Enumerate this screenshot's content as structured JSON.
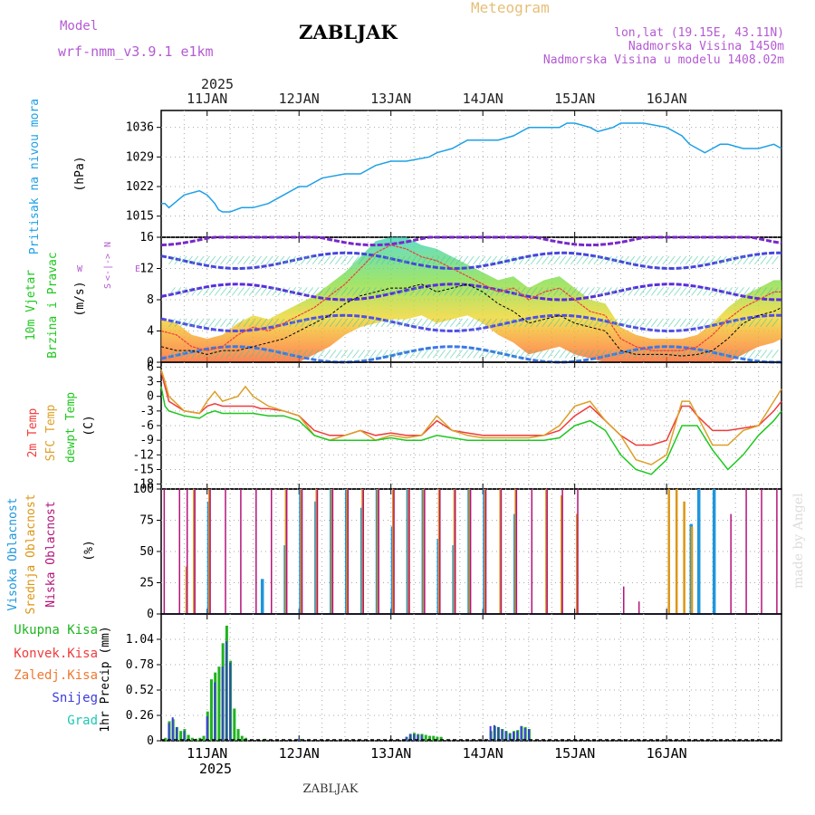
{
  "header": {
    "model_label": "Model",
    "model_name": "wrf-nmm_v3.9.1 e1km",
    "station": "ZABLJAK",
    "meteogram": "Meteogram",
    "lonlat": "lon,lat (19.15E, 43.11N)",
    "altitude": "Nadmorska Visina 1450m",
    "model_altitude": "Nadmorska Visina u modelu 1408.02m",
    "footer_station": "ZABLJAK",
    "credit": "made by Angel",
    "top_year": "2025",
    "bottom_year": "2025"
  },
  "colors": {
    "pressure": "#1ea0e6",
    "temp2m": "#f03c3c",
    "sfc": "#dca028",
    "dewpt": "#1ec81e",
    "high_cloud": "#1e96dc",
    "mid_cloud": "#dc9614",
    "low_cloud": "#b4147a",
    "total_precip": "#1eb41e",
    "conv_precip": "#f03c3c",
    "frz_precip": "#f07832",
    "snow": "#3c3cdc",
    "graupel": "#1ec8b4",
    "wind_speed": "#000000",
    "wind_gust": "#f03c3c"
  },
  "chart_data": [
    {
      "type": "line",
      "panel": "pressure",
      "ylabel_lines": [
        "Pritisak na nivou mora",
        "(hPa)"
      ],
      "ylim": [
        1010,
        1040
      ],
      "yticks": [
        1015,
        1022,
        1029,
        1036
      ],
      "x_day_labels": [
        "11JAN",
        "12JAN",
        "13JAN",
        "14JAN",
        "15JAN",
        "16JAN"
      ],
      "x_hours_range": [
        -12,
        150
      ],
      "grid": true,
      "series": [
        {
          "hours": [
            -12,
            -11,
            -10,
            -6,
            -2,
            0,
            2,
            3,
            4,
            6,
            9,
            12,
            16,
            20,
            24,
            26,
            30,
            36,
            40,
            44,
            48,
            52,
            58,
            60,
            64,
            68,
            72,
            76,
            80,
            84,
            88,
            92,
            94,
            96,
            100,
            102,
            104,
            106,
            108,
            110,
            114,
            120,
            124,
            126,
            128,
            130,
            132,
            134,
            136,
            140,
            144,
            148,
            150
          ],
          "values": [
            1018,
            1018,
            1017,
            1020,
            1021,
            1020,
            1018,
            1016.5,
            1016,
            1016,
            1017,
            1017,
            1018,
            1020,
            1022,
            1022,
            1024,
            1025,
            1025,
            1027,
            1028,
            1028,
            1029,
            1030,
            1031,
            1033,
            1033,
            1033,
            1034,
            1036,
            1036,
            1036,
            1037,
            1037,
            1036,
            1035,
            1035.5,
            1036,
            1037,
            1037,
            1037,
            1036,
            1034,
            1032,
            1031,
            1030,
            1031,
            1032,
            1032,
            1031,
            1031,
            1032,
            1031
          ]
        }
      ]
    },
    {
      "type": "line",
      "panel": "wind",
      "ylabel_lines": [
        "10m Vjetar",
        "Brzina i Pravac",
        "(m/s)"
      ],
      "direction_legend": [
        "N",
        "E",
        "W",
        "S",
        "<-|->"
      ],
      "ylim": [
        0,
        16
      ],
      "yticks": [
        0,
        4,
        8,
        12,
        16
      ],
      "grid": true,
      "series": [
        {
          "name": "speed",
          "hours": [
            -12,
            -8,
            -4,
            0,
            4,
            8,
            12,
            16,
            20,
            24,
            28,
            32,
            36,
            40,
            44,
            48,
            52,
            56,
            60,
            64,
            68,
            72,
            76,
            80,
            84,
            88,
            92,
            96,
            100,
            104,
            108,
            112,
            116,
            120,
            124,
            128,
            132,
            136,
            140,
            144,
            148,
            150
          ],
          "values": [
            2,
            1.5,
            1.5,
            1,
            1.5,
            1.5,
            2,
            2.5,
            3,
            4,
            5,
            6,
            7.5,
            8.5,
            9,
            9.5,
            9.5,
            10,
            9,
            9.5,
            10,
            9,
            7.5,
            6.5,
            5,
            5.5,
            6,
            5,
            4.5,
            4,
            1.5,
            1,
            1,
            1,
            0.8,
            1,
            1.5,
            3,
            5,
            6,
            6.5,
            7
          ]
        },
        {
          "name": "gust",
          "hours": [
            -12,
            -8,
            -4,
            0,
            4,
            8,
            12,
            16,
            20,
            24,
            28,
            32,
            36,
            40,
            44,
            48,
            52,
            56,
            60,
            64,
            68,
            72,
            76,
            80,
            84,
            88,
            92,
            96,
            100,
            104,
            108,
            112,
            116,
            120,
            124,
            128,
            132,
            136,
            140,
            144,
            148,
            150
          ],
          "values": [
            4,
            3.5,
            2,
            1.5,
            2,
            3.5,
            4.5,
            4,
            5,
            6,
            7,
            8.5,
            10,
            12,
            14,
            15,
            14.5,
            13.5,
            13,
            12,
            11,
            10,
            9,
            9.5,
            8,
            9,
            9.5,
            8,
            6.5,
            6,
            3,
            2,
            1.5,
            1.5,
            1.5,
            2,
            3.5,
            5.5,
            7,
            8,
            9,
            9
          ]
        }
      ]
    },
    {
      "type": "line",
      "panel": "temperature",
      "ylabel_lines": [
        "2m Temp",
        "SFC Temp",
        "dewpt Temp",
        "(C)"
      ],
      "ylim": [
        -19,
        7
      ],
      "yticks": [
        -18,
        -15,
        -12,
        -9,
        -6,
        -3,
        0,
        3,
        6
      ],
      "grid": true,
      "series": [
        {
          "name": "2m Temp",
          "hours": [
            -12,
            -11,
            -10,
            -6,
            -2,
            0,
            2,
            4,
            8,
            12,
            14,
            16,
            20,
            24,
            28,
            32,
            36,
            40,
            44,
            48,
            52,
            56,
            60,
            64,
            68,
            72,
            76,
            80,
            84,
            88,
            92,
            96,
            100,
            104,
            108,
            112,
            116,
            120,
            124,
            126,
            128,
            132,
            136,
            140,
            144,
            148,
            150
          ],
          "values": [
            5,
            2,
            -1,
            -3,
            -3.5,
            -2,
            -1.5,
            -2,
            -2,
            -2,
            -2.5,
            -2.5,
            -3,
            -4,
            -7,
            -8,
            -8,
            -7,
            -8,
            -7.5,
            -8,
            -8,
            -5,
            -7,
            -7.5,
            -8,
            -8,
            -8,
            -8,
            -8,
            -7,
            -4,
            -2,
            -5,
            -8,
            -10,
            -10,
            -9,
            -2,
            -2,
            -4,
            -7,
            -7,
            -6.5,
            -6,
            -3,
            -1
          ]
        },
        {
          "name": "SFC Temp",
          "hours": [
            -12,
            -11,
            -10,
            -6,
            -2,
            0,
            2,
            4,
            8,
            10,
            12,
            14,
            16,
            20,
            24,
            28,
            32,
            36,
            40,
            44,
            48,
            52,
            56,
            60,
            64,
            68,
            72,
            76,
            80,
            84,
            88,
            92,
            96,
            100,
            104,
            108,
            112,
            116,
            120,
            124,
            126,
            128,
            132,
            136,
            140,
            144,
            148,
            150
          ],
          "values": [
            5.5,
            3,
            0,
            -3,
            -3.5,
            -1,
            1,
            -1,
            0,
            2,
            0,
            -1,
            -2,
            -3,
            -4,
            -8,
            -9,
            -8,
            -7,
            -9,
            -8,
            -8.5,
            -8,
            -4,
            -7,
            -8,
            -8.5,
            -8.5,
            -8.5,
            -8.5,
            -8,
            -6,
            -2,
            -1,
            -5,
            -8,
            -13,
            -14,
            -12,
            -1,
            -1,
            -4,
            -10,
            -10,
            -7,
            -6,
            -1,
            1.5
          ]
        },
        {
          "name": "dewpt Temp",
          "hours": [
            -12,
            -11,
            -10,
            -6,
            -2,
            0,
            2,
            4,
            8,
            12,
            16,
            20,
            24,
            28,
            32,
            36,
            40,
            44,
            48,
            52,
            56,
            60,
            64,
            68,
            72,
            76,
            80,
            84,
            88,
            92,
            96,
            100,
            104,
            108,
            112,
            116,
            120,
            124,
            128,
            132,
            136,
            140,
            144,
            148,
            150
          ],
          "values": [
            2,
            -2,
            -3,
            -4,
            -4.5,
            -3.5,
            -3,
            -3.5,
            -3.5,
            -3.5,
            -4,
            -4,
            -5,
            -8,
            -9,
            -9,
            -9,
            -9,
            -8.5,
            -9,
            -9,
            -8,
            -8.5,
            -9,
            -9,
            -9,
            -9,
            -9,
            -9,
            -8.5,
            -6,
            -5,
            -7,
            -12,
            -15,
            -16,
            -13,
            -6,
            -6,
            -11,
            -15,
            -12,
            -8,
            -5,
            -3
          ]
        }
      ]
    },
    {
      "type": "bar",
      "panel": "clouds",
      "ylabel_lines": [
        "Visoka Oblacnost",
        "Srednja Oblacnost",
        "Niska Oblacnost",
        "(%)"
      ],
      "ylim": [
        0,
        100
      ],
      "yticks": [
        0,
        25,
        50,
        75,
        100
      ],
      "grid": true,
      "series": [
        {
          "name": "Visoka Oblacnost",
          "hours": [
            -12,
            -8,
            -4,
            0,
            4,
            8,
            12,
            14,
            16,
            20,
            22,
            24,
            28,
            32,
            36,
            40,
            44,
            48,
            52,
            56,
            60,
            64,
            68,
            72,
            76,
            80,
            84,
            88,
            92,
            96,
            100,
            104,
            108,
            112,
            116,
            120,
            124,
            126,
            128,
            132,
            136,
            140,
            144,
            148
          ],
          "values": [
            0,
            0,
            0,
            90,
            0,
            0,
            0,
            28,
            0,
            55,
            0,
            100,
            90,
            100,
            100,
            85,
            100,
            70,
            100,
            100,
            60,
            55,
            100,
            100,
            0,
            80,
            0,
            0,
            0,
            0,
            0,
            0,
            0,
            0,
            0,
            0,
            0,
            72,
            100,
            100,
            0,
            0,
            0,
            0
          ]
        },
        {
          "name": "Srednja Oblacnost",
          "hours": [
            -12,
            -8,
            -6,
            -4,
            0,
            4,
            8,
            12,
            16,
            20,
            24,
            28,
            32,
            36,
            40,
            44,
            48,
            52,
            56,
            60,
            64,
            68,
            72,
            76,
            80,
            84,
            88,
            92,
            96,
            100,
            104,
            108,
            112,
            116,
            120,
            122,
            124,
            126,
            128,
            132,
            136,
            140,
            144,
            148
          ],
          "values": [
            0,
            0,
            38,
            100,
            100,
            0,
            0,
            0,
            0,
            100,
            100,
            100,
            100,
            100,
            100,
            100,
            100,
            100,
            100,
            100,
            100,
            100,
            100,
            100,
            100,
            0,
            100,
            95,
            80,
            0,
            0,
            0,
            0,
            0,
            100,
            100,
            90,
            70,
            0,
            0,
            0,
            0,
            0,
            0
          ]
        },
        {
          "name": "Niska Oblacnost",
          "hours": [
            -12,
            -8,
            -6,
            -4,
            0,
            4,
            8,
            12,
            16,
            20,
            24,
            28,
            32,
            36,
            40,
            44,
            48,
            52,
            56,
            60,
            64,
            68,
            72,
            76,
            80,
            84,
            88,
            92,
            96,
            100,
            104,
            108,
            112,
            116,
            120,
            124,
            128,
            132,
            136,
            140,
            144,
            148
          ],
          "values": [
            100,
            100,
            100,
            100,
            100,
            100,
            100,
            100,
            100,
            100,
            100,
            100,
            100,
            100,
            100,
            100,
            100,
            100,
            100,
            100,
            100,
            100,
            100,
            100,
            100,
            100,
            100,
            100,
            100,
            0,
            0,
            22,
            10,
            0,
            0,
            0,
            0,
            0,
            80,
            100,
            100,
            100
          ]
        }
      ]
    },
    {
      "type": "bar",
      "panel": "precipitation",
      "ylabel_lines": [
        "1hr Precip (mm)"
      ],
      "legend": [
        "Ukupna Kisa",
        "Konvek.Kisa",
        "Zaledj.Kisa",
        "Snijeg",
        "Grad"
      ],
      "ylim": [
        0,
        1.3
      ],
      "yticks": [
        0,
        0.26,
        0.52,
        0.78,
        1.04
      ],
      "grid": true,
      "series": [
        {
          "name": "Ukupna Kisa",
          "hours": [
            -11,
            -10,
            -9,
            -8,
            -7,
            -6,
            -5,
            -4,
            -3,
            -2,
            -1,
            0,
            1,
            2,
            3,
            4,
            5,
            6,
            7,
            8,
            9,
            10,
            15,
            24,
            52,
            53,
            54,
            55,
            56,
            57,
            58,
            59,
            60,
            61,
            74,
            75,
            76,
            77,
            78,
            79,
            80,
            81,
            82,
            83,
            84
          ],
          "values": [
            0.03,
            0.2,
            0.22,
            0.14,
            0.1,
            0.12,
            0.06,
            0.03,
            0.02,
            0.03,
            0.05,
            0.3,
            0.63,
            0.7,
            0.76,
            1.0,
            1.18,
            0.82,
            0.33,
            0.12,
            0.05,
            0.03,
            0.02,
            0.02,
            0.04,
            0.07,
            0.08,
            0.07,
            0.07,
            0.06,
            0.05,
            0.05,
            0.04,
            0.04,
            0.1,
            0.15,
            0.14,
            0.12,
            0.1,
            0.08,
            0.1,
            0.11,
            0.15,
            0.14,
            0.12
          ]
        },
        {
          "name": "Snijeg",
          "hours": [
            -10,
            -9,
            -8,
            -6,
            0,
            2,
            4,
            5,
            6,
            24,
            52,
            53,
            54,
            55,
            56,
            74,
            75,
            76,
            77,
            78,
            79,
            80,
            81,
            82,
            83,
            84
          ],
          "values": [
            0.18,
            0.24,
            0.14,
            0.1,
            0.25,
            0.6,
            0.76,
            1.02,
            0.8,
            0.02,
            0.04,
            0.07,
            0.07,
            0.06,
            0.06,
            0.15,
            0.16,
            0.14,
            0.12,
            0.1,
            0.07,
            0.09,
            0.1,
            0.15,
            0.13,
            0.12
          ]
        }
      ]
    }
  ]
}
